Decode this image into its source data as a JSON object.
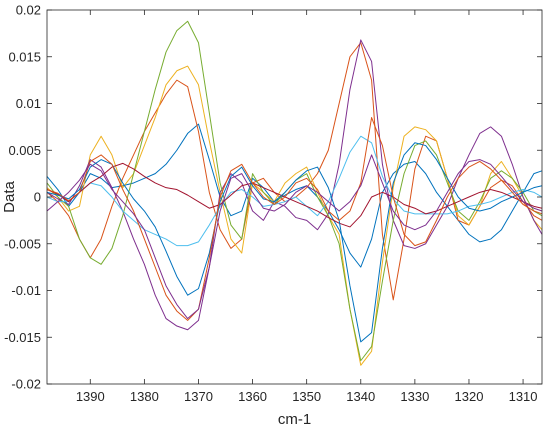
{
  "chart_data": {
    "type": "line",
    "xlabel": "cm-1",
    "ylabel": "Data",
    "xlim": [
      1306.5,
      1398
    ],
    "x_reversed": true,
    "ylim": [
      -0.02,
      0.02
    ],
    "xticks": [
      1390,
      1380,
      1370,
      1360,
      1350,
      1340,
      1330,
      1320,
      1310
    ],
    "xtick_labels": [
      "1390",
      "1380",
      "1370",
      "1360",
      "1350",
      "1340",
      "1330",
      "1320",
      "1310"
    ],
    "yticks": [
      0.02,
      0.015,
      0.01,
      0.005,
      0,
      -0.005,
      -0.01,
      -0.015,
      -0.02
    ],
    "ytick_labels": [
      "0.02",
      "0.015",
      "0.01",
      "0.005",
      "0",
      "-0.005",
      "-0.01",
      "-0.015",
      "-0.02"
    ],
    "grid": false,
    "box": true,
    "x": [
      1398,
      1396,
      1394,
      1392,
      1390,
      1388,
      1386,
      1384,
      1382,
      1380,
      1378,
      1376,
      1374,
      1372,
      1370,
      1368,
      1366,
      1364,
      1362,
      1360,
      1358,
      1356,
      1354,
      1352,
      1350,
      1348,
      1346,
      1344,
      1342,
      1340,
      1338,
      1336,
      1334,
      1332,
      1330,
      1328,
      1326,
      1324,
      1322,
      1320,
      1318,
      1316,
      1314,
      1312,
      1310,
      1308,
      1306.5
    ],
    "series": [
      {
        "color": "#0072BD",
        "values": [
          0.0022,
          0.0008,
          -0.001,
          0.0005,
          0.0025,
          0.002,
          0.001,
          0.0012,
          0.0015,
          0.002,
          0.0025,
          0.0035,
          0.005,
          0.0068,
          0.0078,
          0.004,
          0.0,
          -0.002,
          -0.0015,
          0.002,
          0.001,
          -0.0005,
          0.0002,
          0.0008,
          0.0012,
          0.0,
          -0.0015,
          -0.0035,
          -0.006,
          -0.0075,
          -0.0045,
          0.0005,
          0.0025,
          0.0035,
          0.0038,
          0.0025,
          0.0005,
          -0.001,
          -0.0025,
          -0.004,
          -0.0048,
          -0.0045,
          -0.0035,
          -0.0015,
          0.0005,
          0.0025,
          0.0028
        ]
      },
      {
        "color": "#D95319",
        "values": [
          0.0005,
          -0.0005,
          -0.002,
          -0.0045,
          -0.0065,
          -0.0045,
          -0.001,
          0.002,
          0.0045,
          0.007,
          0.009,
          0.011,
          0.0125,
          0.0118,
          0.007,
          0.0005,
          -0.0035,
          -0.0055,
          -0.0045,
          0.0015,
          0.002,
          0.0005,
          -0.0005,
          0.0,
          0.001,
          0.0025,
          0.005,
          0.01,
          0.015,
          0.0165,
          0.0125,
          -0.004,
          -0.011,
          -0.0045,
          0.003,
          0.0065,
          0.006,
          0.002,
          -0.0025,
          -0.003,
          -0.001,
          0.001,
          0.0018,
          0.0012,
          -0.0005,
          -0.002,
          -0.0025
        ]
      },
      {
        "color": "#EDB120",
        "values": [
          0.001,
          0.0,
          -0.0015,
          -0.001,
          0.0045,
          0.0065,
          0.0045,
          0.001,
          0.0025,
          0.0055,
          0.0085,
          0.012,
          0.0135,
          0.014,
          0.012,
          0.006,
          0.0005,
          -0.0045,
          -0.006,
          0.0015,
          0.0005,
          -0.0005,
          0.0015,
          0.0025,
          0.0032,
          0.0005,
          -0.002,
          -0.004,
          -0.012,
          -0.018,
          -0.0165,
          -0.007,
          0.001,
          0.0065,
          0.0075,
          0.0072,
          0.006,
          0.002,
          -0.002,
          -0.003,
          -0.001,
          0.0025,
          0.0038,
          0.002,
          0.0,
          -0.0025,
          -0.0035
        ]
      },
      {
        "color": "#7E2F8E",
        "values": [
          0.0005,
          -0.0002,
          -0.0008,
          0.0012,
          0.004,
          0.0032,
          0.001,
          -0.0015,
          -0.0045,
          -0.0072,
          -0.0105,
          -0.013,
          -0.0138,
          -0.0142,
          -0.0132,
          -0.0075,
          0.0005,
          0.0025,
          0.0015,
          -0.0015,
          -0.0025,
          -0.0005,
          -0.001,
          -0.0022,
          -0.0025,
          -0.0035,
          -0.0018,
          0.0035,
          0.0115,
          0.0168,
          0.0145,
          0.0035,
          -0.0025,
          -0.0052,
          -0.0055,
          -0.005,
          -0.003,
          -0.001,
          0.002,
          0.0045,
          0.0068,
          0.0075,
          0.0065,
          0.0035,
          0.0,
          -0.0025,
          -0.004
        ]
      },
      {
        "color": "#77AC30",
        "values": [
          0.0015,
          0.0,
          -0.001,
          -0.0045,
          -0.0065,
          -0.0072,
          -0.0055,
          -0.002,
          0.0025,
          0.007,
          0.0115,
          0.0155,
          0.0178,
          0.0188,
          0.0165,
          0.009,
          0.0015,
          -0.003,
          -0.0045,
          0.0025,
          0.0005,
          -0.0008,
          0.0005,
          0.0018,
          0.0025,
          0.0,
          -0.002,
          -0.005,
          -0.012,
          -0.0175,
          -0.016,
          -0.009,
          -0.0025,
          0.0025,
          0.0055,
          0.006,
          0.0045,
          0.0015,
          -0.0015,
          -0.0025,
          -0.0005,
          0.002,
          0.0028,
          0.002,
          0.0005,
          -0.0015,
          -0.002
        ]
      },
      {
        "color": "#4DBEEE",
        "values": [
          0.0,
          -0.0005,
          -0.0005,
          0.0005,
          0.0015,
          0.0012,
          0.0,
          -0.0015,
          -0.0025,
          -0.0035,
          -0.004,
          -0.0045,
          -0.0052,
          -0.0052,
          -0.0048,
          -0.003,
          -0.001,
          0.0005,
          0.0008,
          0.0,
          -0.001,
          -0.0008,
          -0.0005,
          0.0,
          -0.001,
          -0.002,
          -0.0005,
          0.002,
          0.0048,
          0.0065,
          0.0058,
          0.0022,
          -0.0002,
          -0.0015,
          -0.0018,
          -0.0018,
          -0.0018,
          -0.0018,
          -0.0015,
          -0.001,
          -0.0008,
          -0.0005,
          0.0,
          0.0005,
          0.0008,
          0.0005,
          0.0
        ]
      },
      {
        "color": "#A2142F",
        "values": [
          0.0008,
          0.0003,
          -0.0005,
          0.0005,
          0.0015,
          0.0022,
          0.0032,
          0.0036,
          0.003,
          0.0022,
          0.0015,
          0.001,
          0.0008,
          0.0002,
          -0.0005,
          -0.0012,
          -0.0008,
          0.0002,
          0.0012,
          0.0015,
          0.001,
          0.0005,
          0.0,
          -0.0005,
          -0.001,
          -0.0015,
          -0.0022,
          -0.0028,
          -0.0032,
          -0.002,
          0.0,
          0.0005,
          0.0,
          -0.0008,
          -0.0012,
          -0.0018,
          -0.0015,
          -0.001,
          -0.0005,
          0.0,
          0.0005,
          0.0008,
          0.0005,
          0.0,
          -0.0005,
          -0.001,
          -0.0012
        ]
      },
      {
        "color": "#0072BD",
        "values": [
          0.0005,
          0.0002,
          -0.0002,
          0.0008,
          0.0032,
          0.004,
          0.0035,
          0.0015,
          -0.0002,
          -0.0015,
          -0.0032,
          -0.0058,
          -0.0085,
          -0.0105,
          -0.0098,
          -0.006,
          -0.0005,
          0.0022,
          0.0032,
          0.0012,
          -0.0002,
          -0.0005,
          0.0005,
          0.0018,
          0.0028,
          0.0032,
          0.001,
          -0.0025,
          -0.0095,
          -0.0155,
          -0.0145,
          -0.0055,
          0.0015,
          0.0045,
          0.0058,
          0.0055,
          0.004,
          0.002,
          0.0,
          -0.0012,
          -0.0015,
          -0.0012,
          -0.0005,
          0.0,
          0.0005,
          0.001,
          0.0012
        ]
      },
      {
        "color": "#D95319",
        "values": [
          0.0008,
          0.0004,
          -0.0004,
          0.0005,
          0.0038,
          0.0045,
          0.0035,
          0.0008,
          -0.0015,
          -0.0045,
          -0.0075,
          -0.0105,
          -0.0122,
          -0.0132,
          -0.012,
          -0.0065,
          0.0,
          0.0028,
          0.0035,
          0.0015,
          0.0,
          -0.0008,
          0.0,
          0.0015,
          0.002,
          0.0008,
          -0.0015,
          -0.0025,
          -0.0015,
          0.0015,
          0.0085,
          0.0055,
          0.0,
          -0.004,
          -0.0052,
          -0.0048,
          -0.0025,
          0.0,
          0.002,
          0.0032,
          0.0038,
          0.003,
          0.0018,
          0.0005,
          -0.0008,
          -0.0015,
          -0.0018
        ]
      },
      {
        "color": "#7E2F8E",
        "values": [
          -0.0015,
          -0.0005,
          0.0005,
          0.0018,
          0.0035,
          0.0028,
          0.0008,
          -0.0005,
          -0.0018,
          -0.0035,
          -0.0065,
          -0.0095,
          -0.0115,
          -0.013,
          -0.012,
          -0.0075,
          -0.0015,
          0.002,
          0.0025,
          0.0005,
          -0.0012,
          -0.0015,
          -0.0008,
          0.0005,
          0.0012,
          0.0005,
          -0.0005,
          -0.0015,
          -0.0005,
          0.0012,
          0.0045,
          0.0015,
          -0.0015,
          -0.003,
          -0.0035,
          -0.003,
          -0.0015,
          0.0005,
          0.0025,
          0.0038,
          0.004,
          0.0035,
          0.0022,
          0.0008,
          -0.0005,
          -0.0012,
          -0.0015
        ]
      }
    ]
  }
}
